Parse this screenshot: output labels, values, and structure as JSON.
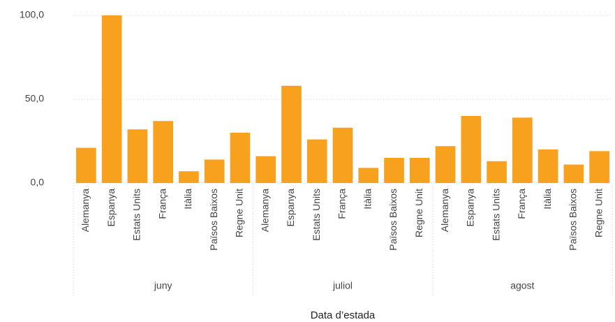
{
  "chart_data": {
    "type": "bar",
    "categories": [
      "Alemanya",
      "Espanya",
      "Estats Units",
      "França",
      "Itàlia",
      "Països Baixos",
      "Regne Unit",
      "Alemanya",
      "Espanya",
      "Estats Units",
      "França",
      "Itàlia",
      "Països Baixos",
      "Regne Unit",
      "Alemanya",
      "Espanya",
      "Estats Units",
      "França",
      "Itàlia",
      "Països Baixos",
      "Regne Unit"
    ],
    "groups": [
      "juny",
      "juliol",
      "agost"
    ],
    "values": [
      21,
      100,
      32,
      37,
      7,
      14,
      30,
      16,
      58,
      26,
      33,
      9,
      15,
      15,
      22,
      40,
      13,
      39,
      20,
      11,
      19
    ],
    "color": "#f8a11f",
    "xlabel": "Data d’estada",
    "ylim": [
      0,
      100
    ],
    "yticks": [
      {
        "value": 0,
        "label": "0,0"
      },
      {
        "value": 50,
        "label": "50,0"
      },
      {
        "value": 100,
        "label": "100,0"
      }
    ],
    "grid": true
  }
}
